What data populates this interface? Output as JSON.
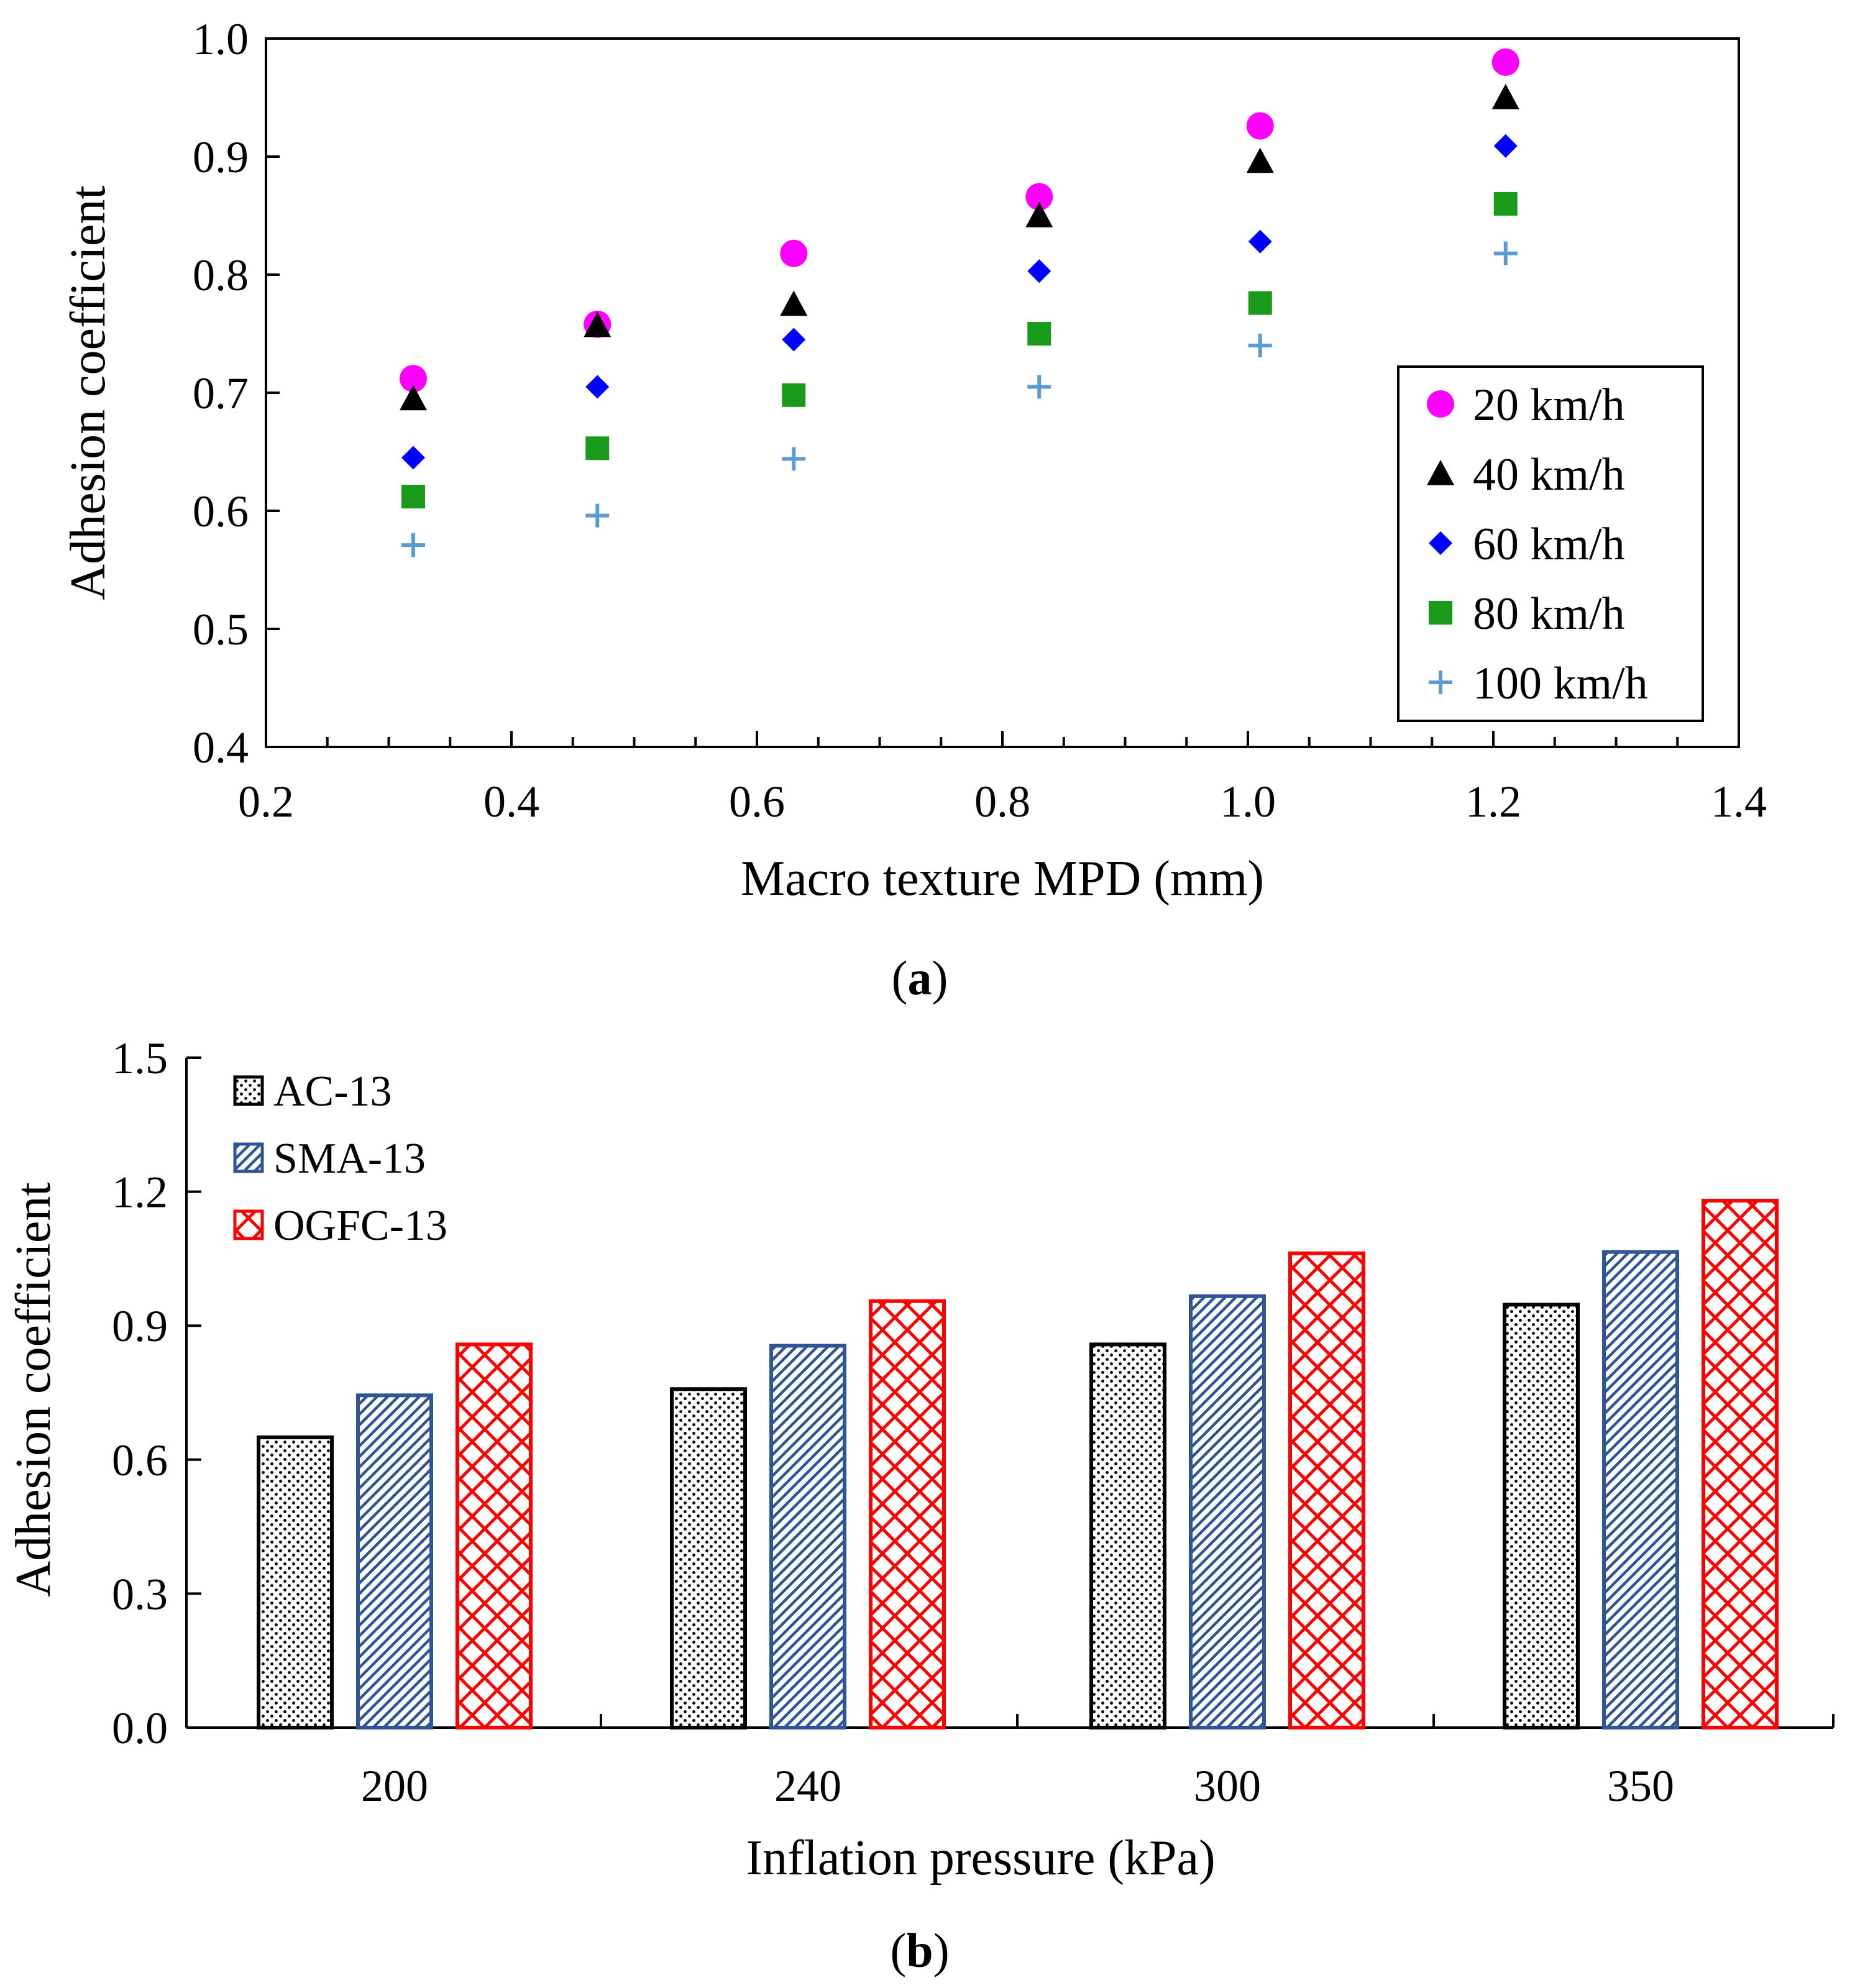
{
  "chart_data": [
    {
      "id": "a",
      "type": "scatter",
      "panel_label": "a",
      "title": "",
      "xlabel": "Macro texture MPD (mm)",
      "ylabel": "Adhesion coefficient",
      "xlim": [
        0.2,
        1.4
      ],
      "ylim": [
        0.4,
        1.0
      ],
      "xticks": [
        "0.2",
        "0.4",
        "0.6",
        "0.8",
        "1.0",
        "1.2",
        "1.4"
      ],
      "yticks": [
        "0.4",
        "0.5",
        "0.6",
        "0.7",
        "0.8",
        "0.9",
        "1.0"
      ],
      "x": [
        0.32,
        0.47,
        0.63,
        0.83,
        1.01,
        1.21
      ],
      "legend_position": "bottom-right",
      "series": [
        {
          "name": "20 km/h",
          "marker": "circle",
          "color": "#ff00ff",
          "values": [
            0.712,
            0.758,
            0.818,
            0.866,
            0.926,
            0.98
          ]
        },
        {
          "name": "40 km/h",
          "marker": "triangle",
          "color": "#000000",
          "values": [
            0.695,
            0.757,
            0.775,
            0.85,
            0.896,
            0.95
          ]
        },
        {
          "name": "60 km/h",
          "marker": "diamond",
          "color": "#0000ff",
          "values": [
            0.645,
            0.705,
            0.745,
            0.803,
            0.828,
            0.909
          ]
        },
        {
          "name": "80 km/h",
          "marker": "square",
          "color": "#1a9a1a",
          "values": [
            0.612,
            0.653,
            0.698,
            0.75,
            0.776,
            0.86
          ]
        },
        {
          "name": "100 km/h",
          "marker": "plus",
          "color": "#5b9bd5",
          "values": [
            0.571,
            0.596,
            0.644,
            0.705,
            0.74,
            0.818
          ]
        }
      ]
    },
    {
      "id": "b",
      "type": "bar",
      "panel_label": "b",
      "title": "",
      "xlabel": "Inflation pressure (kPa)",
      "ylabel": "Adhesion coefficient",
      "ylim": [
        0.0,
        1.5
      ],
      "yticks": [
        "0.0",
        "0.3",
        "0.6",
        "0.9",
        "1.2",
        "1.5"
      ],
      "categories": [
        "200",
        "240",
        "300",
        "350"
      ],
      "legend_position": "top-left",
      "series": [
        {
          "name": "AC-13",
          "pattern": "dots",
          "color": "#000000",
          "values": [
            0.65,
            0.758,
            0.858,
            0.947
          ]
        },
        {
          "name": "SMA-13",
          "pattern": "diagonal",
          "color": "#2f5597",
          "values": [
            0.744,
            0.855,
            0.966,
            1.065
          ]
        },
        {
          "name": "OGFC-13",
          "pattern": "crosshatch",
          "color": "#ff0000",
          "values": [
            0.858,
            0.955,
            1.062,
            1.18
          ]
        }
      ]
    }
  ]
}
